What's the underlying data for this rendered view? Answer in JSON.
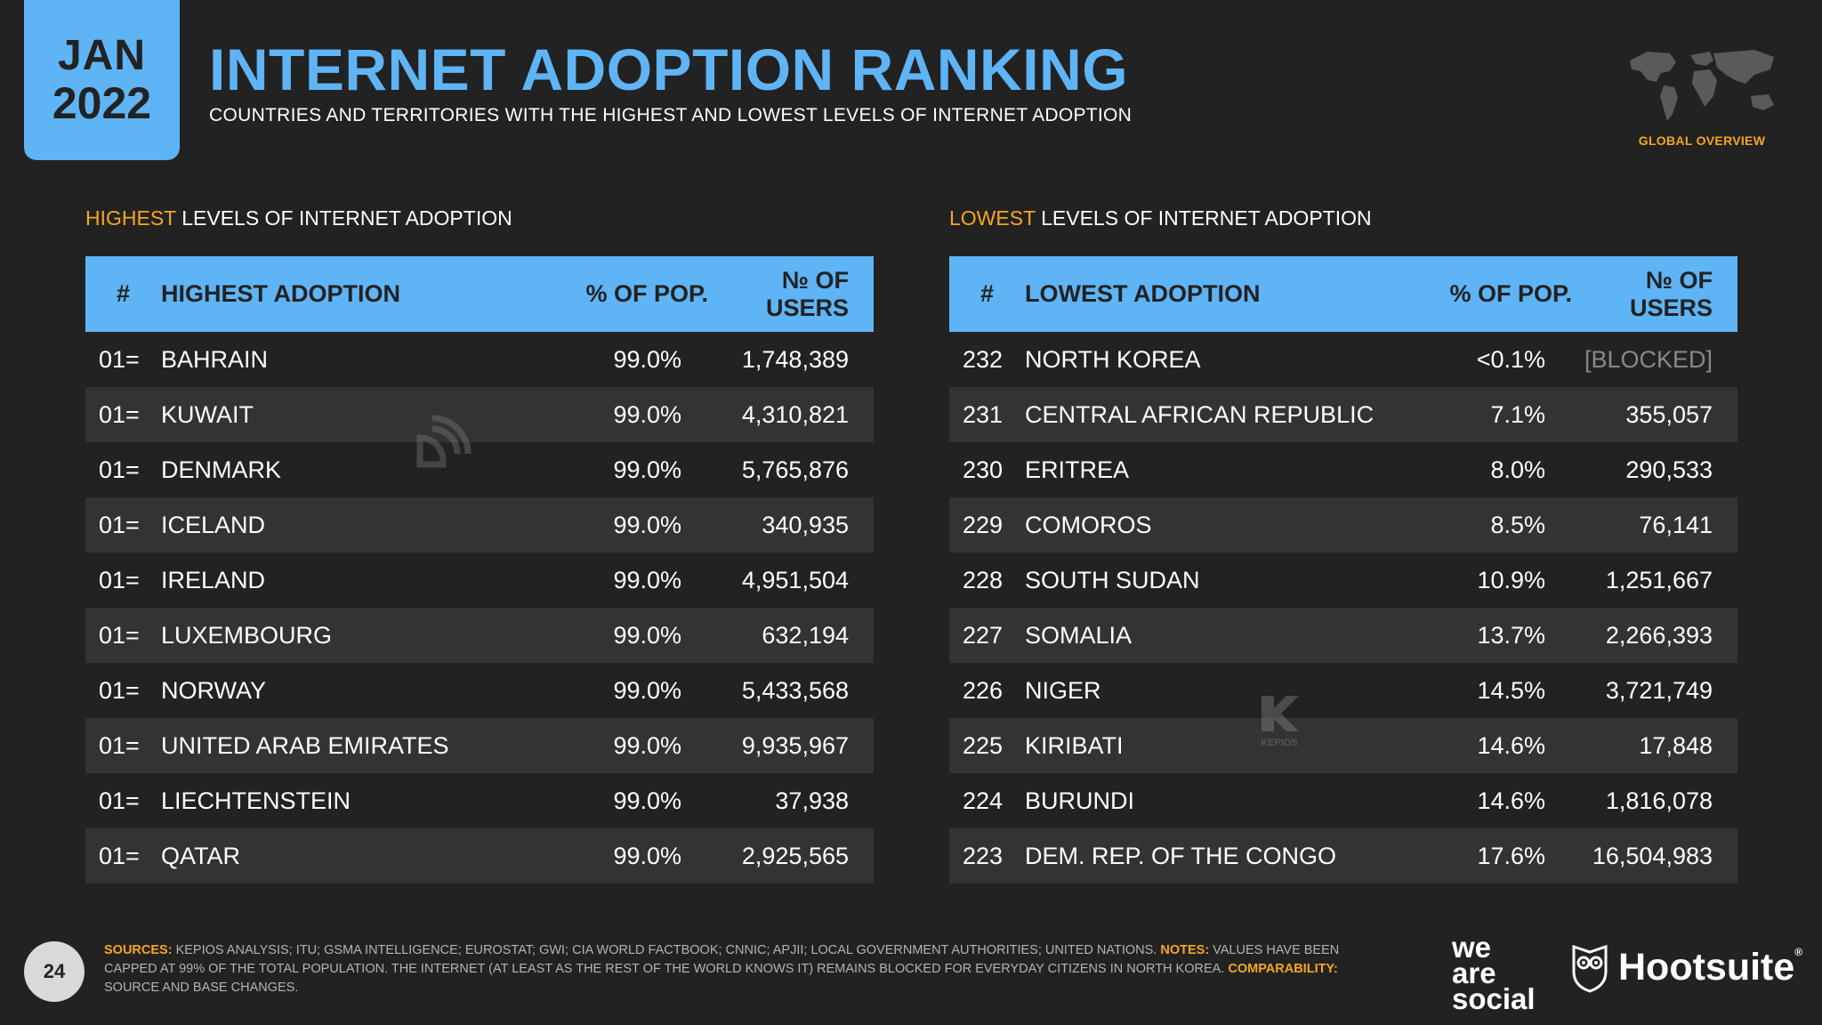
{
  "header": {
    "month": "JAN",
    "year": "2022",
    "title": "INTERNET ADOPTION RANKING",
    "subtitle": "COUNTRIES AND TERRITORIES WITH THE HIGHEST AND LOWEST LEVELS OF INTERNET ADOPTION",
    "badge": "GLOBAL OVERVIEW"
  },
  "highest": {
    "heading_accent": "HIGHEST",
    "heading_rest": " LEVELS OF INTERNET ADOPTION",
    "columns": [
      "#",
      "HIGHEST ADOPTION",
      "% OF POP.",
      "№ OF USERS"
    ],
    "rows": [
      {
        "rank": "01=",
        "country": "BAHRAIN",
        "pct": "99.0%",
        "users": "1,748,389"
      },
      {
        "rank": "01=",
        "country": "KUWAIT",
        "pct": "99.0%",
        "users": "4,310,821"
      },
      {
        "rank": "01=",
        "country": "DENMARK",
        "pct": "99.0%",
        "users": "5,765,876"
      },
      {
        "rank": "01=",
        "country": "ICELAND",
        "pct": "99.0%",
        "users": "340,935"
      },
      {
        "rank": "01=",
        "country": "IRELAND",
        "pct": "99.0%",
        "users": "4,951,504"
      },
      {
        "rank": "01=",
        "country": "LUXEMBOURG",
        "pct": "99.0%",
        "users": "632,194"
      },
      {
        "rank": "01=",
        "country": "NORWAY",
        "pct": "99.0%",
        "users": "5,433,568"
      },
      {
        "rank": "01=",
        "country": "UNITED ARAB EMIRATES",
        "pct": "99.0%",
        "users": "9,935,967"
      },
      {
        "rank": "01=",
        "country": "LIECHTENSTEIN",
        "pct": "99.0%",
        "users": "37,938"
      },
      {
        "rank": "01=",
        "country": "QATAR",
        "pct": "99.0%",
        "users": "2,925,565"
      }
    ]
  },
  "lowest": {
    "heading_accent": "LOWEST",
    "heading_rest": " LEVELS OF INTERNET ADOPTION",
    "columns": [
      "#",
      "LOWEST ADOPTION",
      "% OF POP.",
      "№ OF USERS"
    ],
    "rows": [
      {
        "rank": "232",
        "country": "NORTH KOREA",
        "pct": "<0.1%",
        "users": "[BLOCKED]"
      },
      {
        "rank": "231",
        "country": "CENTRAL AFRICAN REPUBLIC",
        "pct": "7.1%",
        "users": "355,057"
      },
      {
        "rank": "230",
        "country": "ERITREA",
        "pct": "8.0%",
        "users": "290,533"
      },
      {
        "rank": "229",
        "country": "COMOROS",
        "pct": "8.5%",
        "users": "76,141"
      },
      {
        "rank": "228",
        "country": "SOUTH SUDAN",
        "pct": "10.9%",
        "users": "1,251,667"
      },
      {
        "rank": "227",
        "country": "SOMALIA",
        "pct": "13.7%",
        "users": "2,266,393"
      },
      {
        "rank": "226",
        "country": "NIGER",
        "pct": "14.5%",
        "users": "3,721,749"
      },
      {
        "rank": "225",
        "country": "KIRIBATI",
        "pct": "14.6%",
        "users": "17,848"
      },
      {
        "rank": "224",
        "country": "BURUNDI",
        "pct": "14.6%",
        "users": "1,816,078"
      },
      {
        "rank": "223",
        "country": "DEM. REP. OF THE CONGO",
        "pct": "17.6%",
        "users": "16,504,983"
      }
    ]
  },
  "watermark": {
    "kepios_label": "KEPIOS"
  },
  "footer": {
    "page_number": "24",
    "sources_label": "SOURCES:",
    "sources_text": " KEPIOS ANALYSIS; ITU; GSMA INTELLIGENCE; EUROSTAT; GWI; CIA WORLD FACTBOOK; CNNIC; APJII; LOCAL GOVERNMENT AUTHORITIES; UNITED NATIONS. ",
    "notes_label": "NOTES:",
    "notes_text": " VALUES HAVE BEEN CAPPED AT 99% OF THE TOTAL POPULATION. THE INTERNET (AT LEAST AS THE REST OF THE WORLD KNOWS IT) REMAINS BLOCKED FOR EVERYDAY CITIZENS IN NORTH KOREA. ",
    "comparability_label": "COMPARABILITY:",
    "comparability_text": " SOURCE AND BASE CHANGES.",
    "logo_we": "we",
    "logo_are": "are",
    "logo_social": "social",
    "logo_hootsuite": "Hootsuite",
    "logo_reg": "®"
  },
  "colors": {
    "accent_blue": "#5fb4f5",
    "accent_orange": "#f5a623",
    "background": "#222222",
    "row_alt": "#333333"
  }
}
